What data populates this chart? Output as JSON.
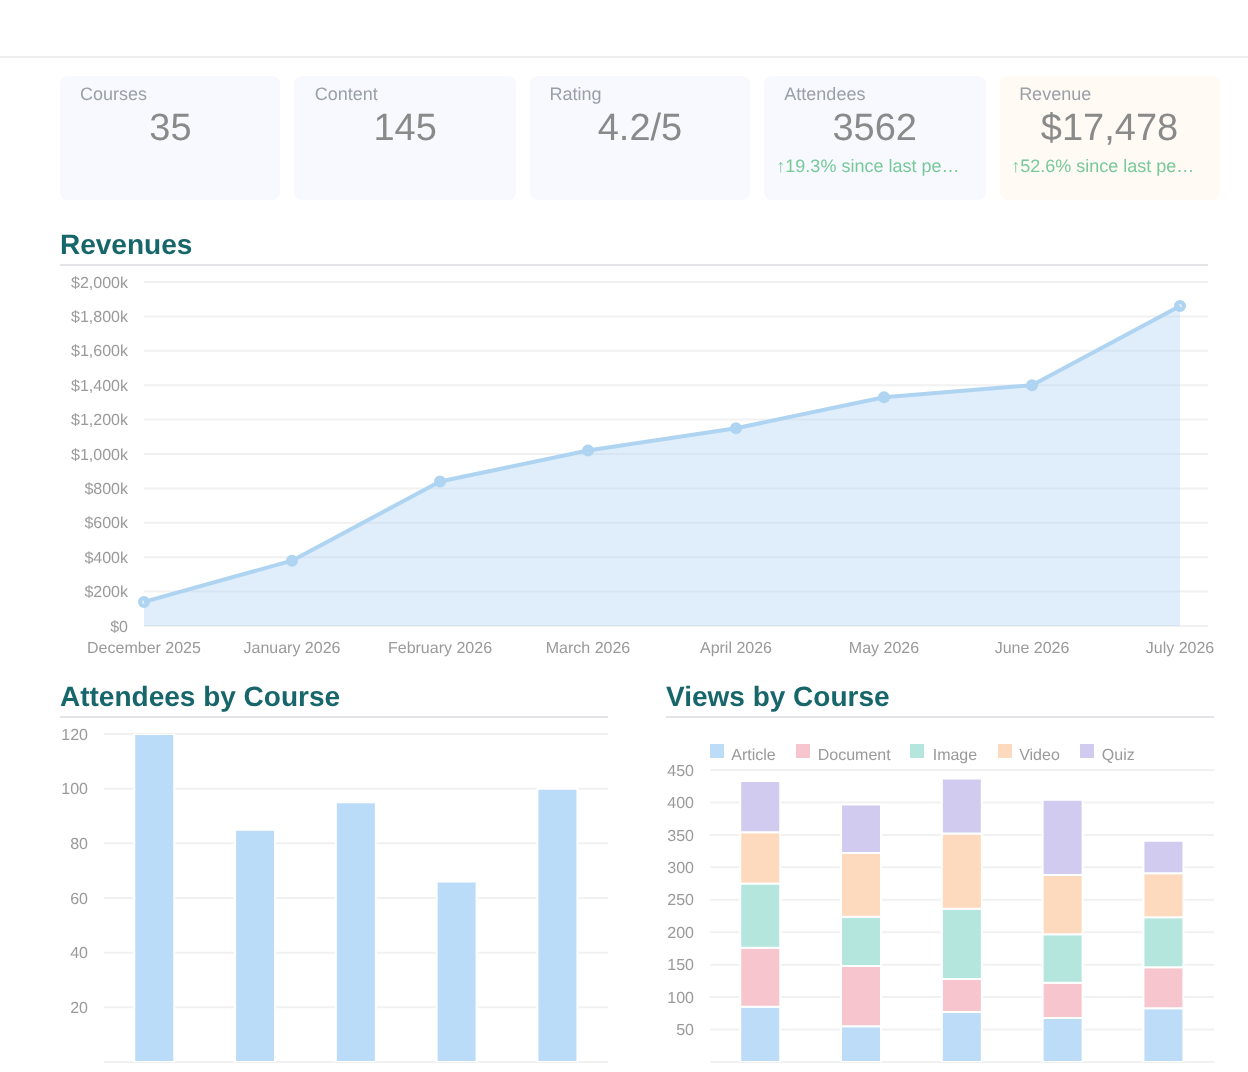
{
  "chart_data": [
    {
      "type": "other",
      "categories": [
        "Courses",
        "Content",
        "Rating",
        "Attendees",
        "Revenue"
      ],
      "value_labels": [
        "35",
        "145",
        "4.2/5",
        "3562",
        "$17,478"
      ],
      "colors": [
        "#f8f9fe",
        "#f8f9fe",
        "#f8f9fe",
        "#f8f9fe",
        "#fffaf4"
      ],
      "annotations": [
        {
          "text": "↑19.3% since last pe…",
          "x": "Attendees"
        },
        {
          "text": "↑52.6% since last pe…",
          "x": "Revenue"
        }
      ]
    },
    {
      "type": "area",
      "title": "Revenues",
      "categories": [
        "December 2025",
        "January 2026",
        "February 2026",
        "March 2026",
        "April 2026",
        "May 2026",
        "June 2026",
        "July 2026"
      ],
      "series": [
        {
          "color": "#aed4f2",
          "values": [
            140,
            380,
            840,
            1020,
            1150,
            1330,
            1400,
            1860
          ]
        }
      ],
      "ylim": [
        0,
        2000
      ],
      "yticks": [
        {
          "value": 0,
          "label": "$0"
        },
        {
          "value": 200,
          "label": "$200k"
        },
        {
          "value": 400,
          "label": "$400k"
        },
        {
          "value": 600,
          "label": "$600k"
        },
        {
          "value": 800,
          "label": "$800k"
        },
        {
          "value": 1000,
          "label": "$1,000k"
        },
        {
          "value": 1200,
          "label": "$1,200k"
        },
        {
          "value": 1400,
          "label": "$1,400k"
        },
        {
          "value": 1600,
          "label": "$1,600k"
        },
        {
          "value": 1800,
          "label": "$1,800k"
        },
        {
          "value": 2000,
          "label": "$2,000k"
        }
      ],
      "grid": "y",
      "marker": "circle",
      "line_style": "solid"
    },
    {
      "type": "bar",
      "title": "Attendees by Course",
      "categories": [
        null,
        null,
        null,
        null,
        null
      ],
      "series": [
        {
          "color": "#bbdcf8",
          "values": [
            120,
            85,
            95,
            66,
            100
          ]
        }
      ],
      "ylim": [
        0,
        120
      ],
      "yticks": [
        20,
        40,
        60,
        80,
        100,
        120
      ],
      "grid": "y",
      "tick_labels": "y"
    },
    {
      "type": "bar",
      "title": "Views by Course",
      "categories": [
        null,
        null,
        null,
        null,
        null
      ],
      "stacked": true,
      "series": [
        {
          "name": "Article",
          "color": "#bcdcf7",
          "values": [
            85,
            55,
            77,
            68,
            83
          ]
        },
        {
          "name": "Document",
          "color": "#f7c5cd",
          "values": [
            91,
            93,
            51,
            54,
            63
          ]
        },
        {
          "name": "Image",
          "color": "#b5e6dd",
          "values": [
            99,
            76,
            108,
            75,
            77
          ]
        },
        {
          "name": "Video",
          "color": "#fdd9bd",
          "values": [
            79,
            98,
            116,
            91,
            68
          ]
        },
        {
          "name": "Quiz",
          "color": "#d0cbef",
          "values": [
            79,
            75,
            85,
            116,
            50
          ]
        }
      ],
      "ylim": [
        0,
        450
      ],
      "yticks": [
        50,
        100,
        150,
        200,
        250,
        300,
        350,
        400,
        450
      ],
      "grid": "y",
      "legend": "top",
      "tick_labels": "y"
    }
  ]
}
